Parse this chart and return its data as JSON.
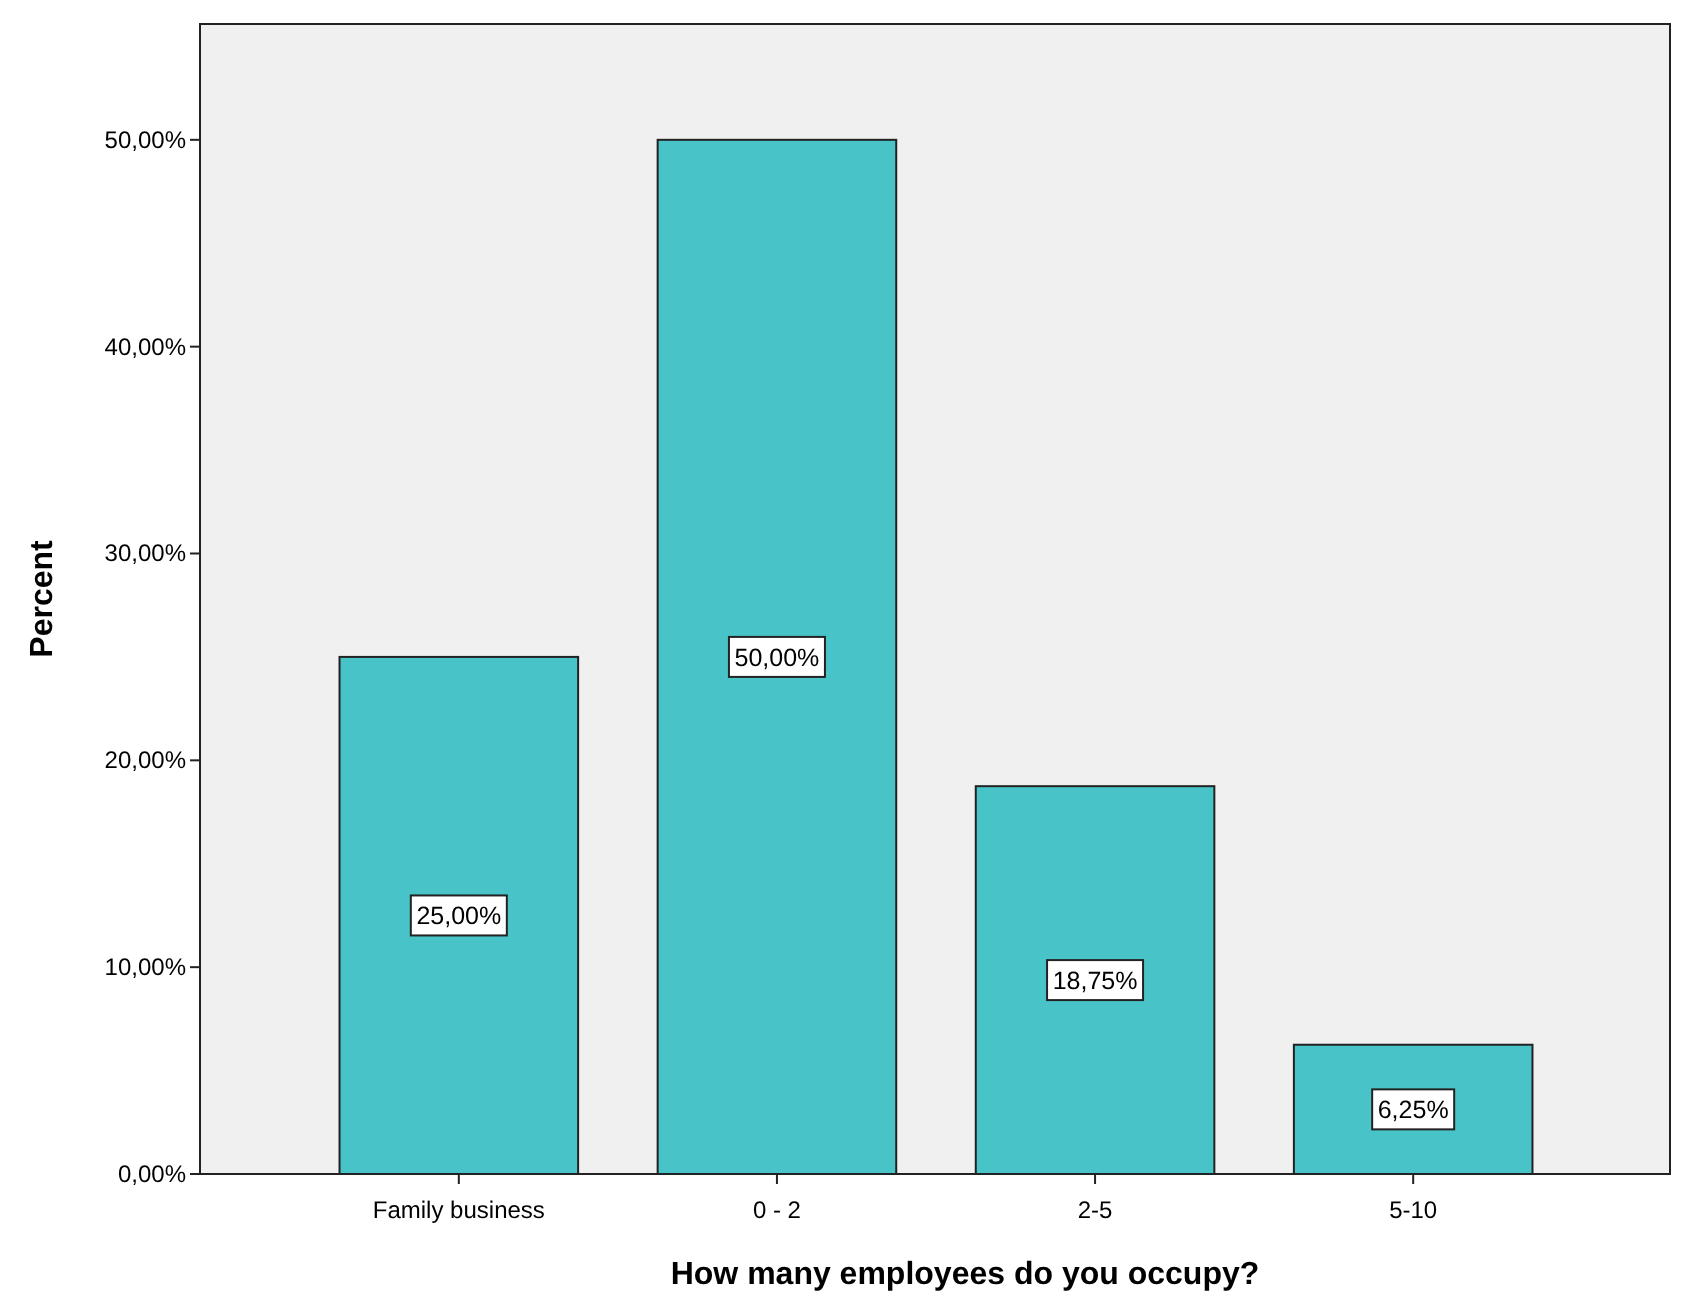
{
  "chart_data": {
    "type": "bar",
    "xlabel": "How many employees do you occupy?",
    "ylabel": "Percent",
    "categories": [
      "Family business",
      "0 - 2",
      "2-5",
      "5-10"
    ],
    "values": [
      25,
      50,
      18.75,
      6.25
    ],
    "value_labels": [
      "25,00%",
      "50,00%",
      "18,75%",
      "6,25%"
    ],
    "color": "#48c4c8",
    "ylim": [
      0,
      55.6
    ],
    "yticks": [
      {
        "value": 0,
        "label": "0,00%"
      },
      {
        "value": 10,
        "label": "10,00%"
      },
      {
        "value": 20,
        "label": "20,00%"
      },
      {
        "value": 30,
        "label": "30,00%"
      },
      {
        "value": 40,
        "label": "40,00%"
      },
      {
        "value": 50,
        "label": "50,00%"
      }
    ],
    "grid": false
  }
}
